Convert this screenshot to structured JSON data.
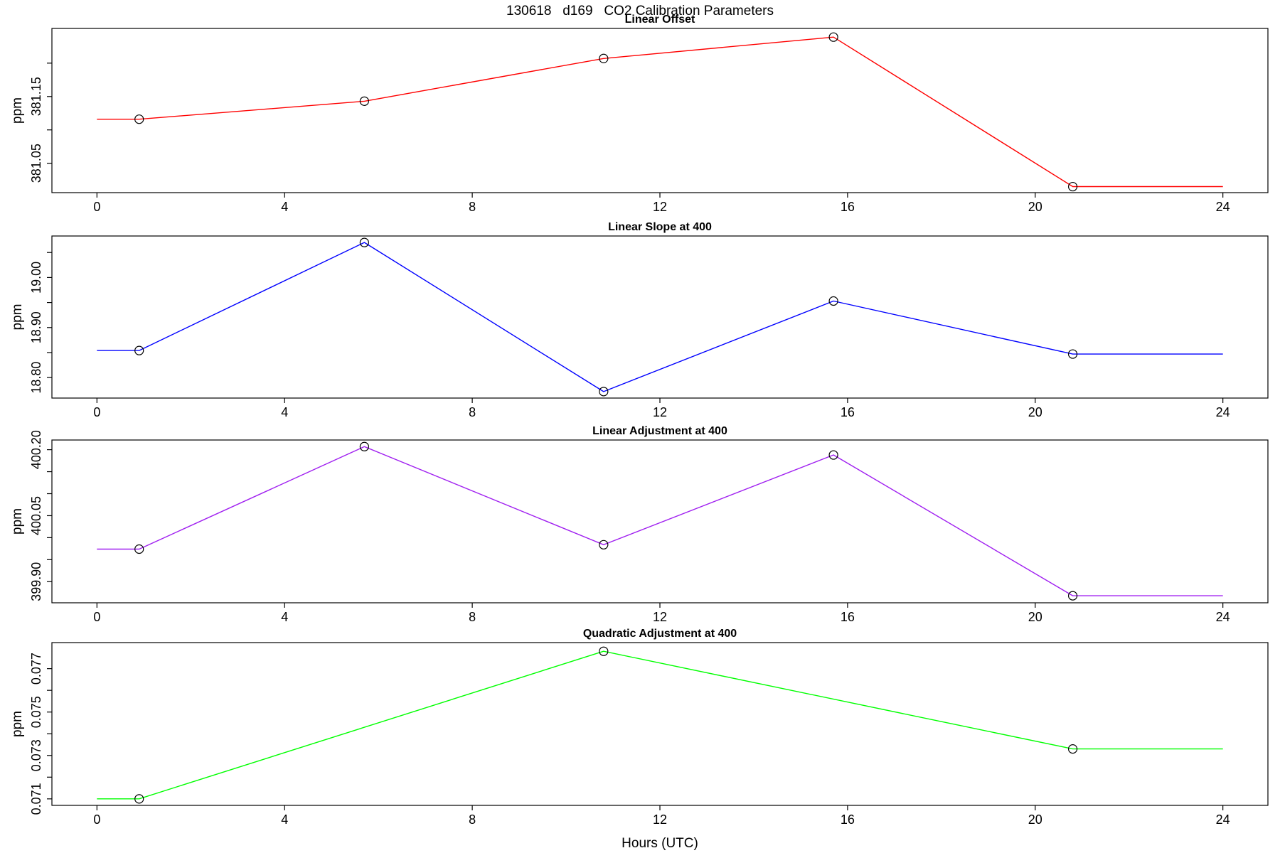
{
  "page_title": "130618   d169   CO2 Calibration Parameters",
  "xlabel": "Hours (UTC)",
  "axis_color": "#000000",
  "background_color": "#ffffff",
  "chart_data": [
    {
      "type": "line",
      "title": "Linear Offset",
      "ylabel": "ppm",
      "color": "#ff0000",
      "marker": "open-circle",
      "x": [
        0.9,
        5.7,
        10.8,
        15.7,
        20.8
      ],
      "y": [
        381.116,
        381.143,
        381.207,
        381.239,
        381.015
      ],
      "line_extent": [
        0,
        24
      ],
      "xlim": [
        -0.96,
        24.96
      ],
      "ylim": [
        381.006,
        381.252
      ],
      "xticks": [
        0,
        4,
        8,
        12,
        16,
        20,
        24
      ],
      "xtick_labels": [
        "0",
        "4",
        "8",
        "12",
        "16",
        "20",
        "24"
      ],
      "yticks": [
        381.05,
        381.1,
        381.15,
        381.2
      ],
      "ytick_labels": [
        "381.05",
        "",
        "381.15",
        ""
      ],
      "grid": false,
      "legend": "none"
    },
    {
      "type": "line",
      "title": "Linear Slope at 400",
      "ylabel": "ppm",
      "color": "#0000ff",
      "marker": "open-circle",
      "x": [
        0.9,
        5.7,
        10.8,
        15.7,
        20.8
      ],
      "y": [
        18.854,
        19.07,
        18.772,
        18.953,
        18.847
      ],
      "line_extent": [
        0,
        24
      ],
      "xlim": [
        -0.96,
        24.96
      ],
      "ylim": [
        18.759,
        19.083
      ],
      "xticks": [
        0,
        4,
        8,
        12,
        16,
        20,
        24
      ],
      "xtick_labels": [
        "0",
        "4",
        "8",
        "12",
        "16",
        "20",
        "24"
      ],
      "yticks": [
        18.8,
        18.85,
        18.9,
        18.95,
        19.0,
        19.05
      ],
      "ytick_labels": [
        "18.80",
        "",
        "18.90",
        "",
        "19.00",
        ""
      ],
      "grid": false,
      "legend": "none"
    },
    {
      "type": "line",
      "title": "Linear Adjustment at 400",
      "ylabel": "ppm",
      "color": "#a020f0",
      "marker": "open-circle",
      "x": [
        0.9,
        5.7,
        10.8,
        15.7,
        20.8
      ],
      "y": [
        399.974,
        400.207,
        399.984,
        400.188,
        399.868
      ],
      "line_extent": [
        0,
        24
      ],
      "xlim": [
        -0.96,
        24.96
      ],
      "ylim": [
        399.852,
        400.222
      ],
      "xticks": [
        0,
        4,
        8,
        12,
        16,
        20,
        24
      ],
      "xtick_labels": [
        "0",
        "4",
        "8",
        "12",
        "16",
        "20",
        "24"
      ],
      "yticks": [
        399.9,
        399.95,
        400.0,
        400.05,
        400.1,
        400.15,
        400.2
      ],
      "ytick_labels": [
        "399.90",
        "",
        "",
        "400.05",
        "",
        "",
        "400.20"
      ],
      "grid": false,
      "legend": "none"
    },
    {
      "type": "line",
      "title": "Quadratic Adjustment at 400",
      "ylabel": "ppm",
      "color": "#00ff00",
      "marker": "open-circle",
      "x": [
        0.9,
        10.8,
        20.8
      ],
      "y": [
        0.071,
        0.0778,
        0.0733
      ],
      "line_extent": [
        0,
        24
      ],
      "xlim": [
        -0.96,
        24.96
      ],
      "ylim": [
        0.0707,
        0.0782
      ],
      "xticks": [
        0,
        4,
        8,
        12,
        16,
        20,
        24
      ],
      "xtick_labels": [
        "0",
        "4",
        "8",
        "12",
        "16",
        "20",
        "24"
      ],
      "yticks": [
        0.071,
        0.072,
        0.073,
        0.074,
        0.075,
        0.076,
        0.077
      ],
      "ytick_labels": [
        "0.071",
        "",
        "0.073",
        "",
        "0.075",
        "",
        "0.077"
      ],
      "grid": false,
      "legend": "none"
    }
  ]
}
